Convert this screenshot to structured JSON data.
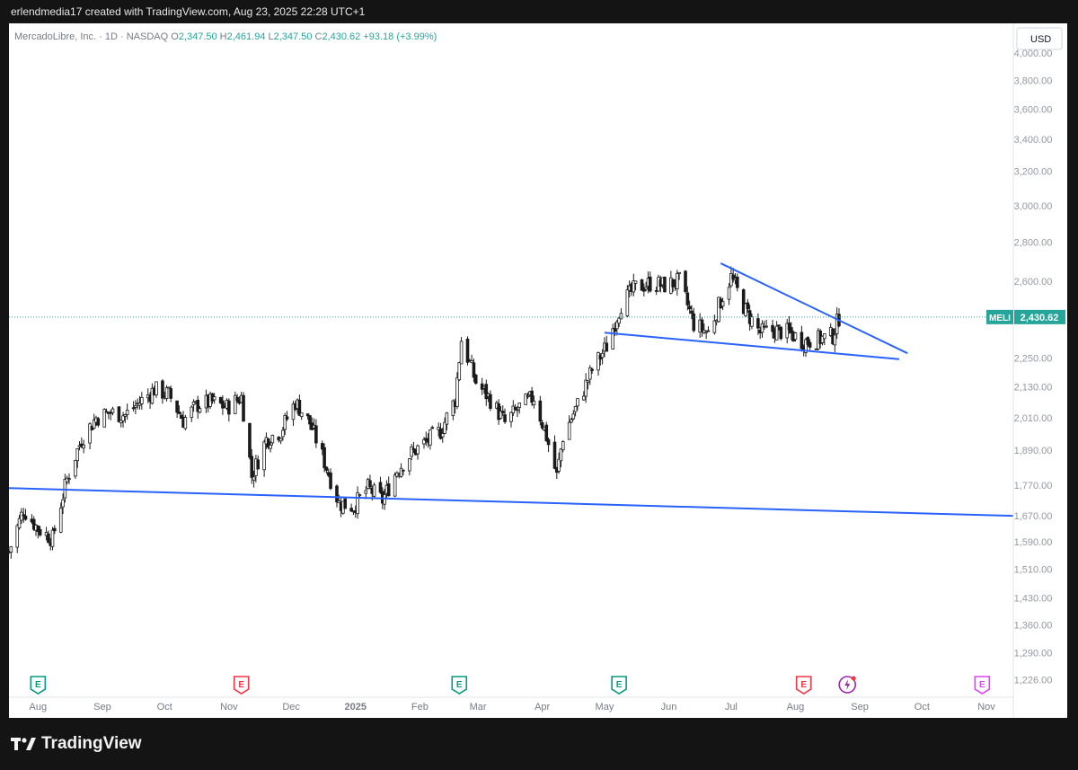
{
  "header": {
    "credit": "erlendmedia17 created with TradingView.com, Aug 23, 2025 22:28 UTC+1"
  },
  "footer": {
    "brand": "TradingView"
  },
  "colors": {
    "up": "#26a69a",
    "down": "#ef5350",
    "candle": "#1a1a1a",
    "trendline": "#2962ff",
    "earnings_past": "#089981",
    "earnings_recent": "#f23645",
    "earnings_future": "#e040fb",
    "price_label": "#26a69a"
  },
  "chart_data": {
    "type": "candlestick",
    "title": "MercadoLibre, Inc. · 1D · NASDAQ",
    "ohlc_header": {
      "o_label": "O",
      "open": "2,347.50",
      "h_label": "H",
      "high": "2,461.94",
      "l_label": "L",
      "low": "2,347.50",
      "c_label": "C",
      "close": "2,430.62",
      "change": "+93.18 (+3.99%)"
    },
    "currency": "USD",
    "symbol": "MELI",
    "last_price": 2430.62,
    "last_price_label": "2,430.62",
    "y_scale": "log",
    "ylim": [
      1190,
      4160
    ],
    "y_ticks": [
      {
        "value": 4000,
        "label": "4,000.00"
      },
      {
        "value": 3800,
        "label": "3,800.00"
      },
      {
        "value": 3600,
        "label": "3,600.00"
      },
      {
        "value": 3400,
        "label": "3,400.00"
      },
      {
        "value": 3200,
        "label": "3,200.00"
      },
      {
        "value": 3000,
        "label": "3,000.00"
      },
      {
        "value": 2800,
        "label": "2,800.00"
      },
      {
        "value": 2600,
        "label": "2,600.00"
      },
      {
        "value": 2250,
        "label": "2,250.00"
      },
      {
        "value": 2130,
        "label": "2,130.00"
      },
      {
        "value": 2010,
        "label": "2,010.00"
      },
      {
        "value": 1890,
        "label": "1,890.00"
      },
      {
        "value": 1770,
        "label": "1,770.00"
      },
      {
        "value": 1670,
        "label": "1,670.00"
      },
      {
        "value": 1590,
        "label": "1,590.00"
      },
      {
        "value": 1510,
        "label": "1,510.00"
      },
      {
        "value": 1430,
        "label": "1,430.00"
      },
      {
        "value": 1360,
        "label": "1,360.00"
      },
      {
        "value": 1290,
        "label": "1,290.00"
      },
      {
        "value": 1226,
        "label": "1,226.00"
      }
    ],
    "x_ticks": [
      {
        "date": "2024-08-01",
        "label": "Aug",
        "bold": false
      },
      {
        "date": "2024-09-01",
        "label": "Sep",
        "bold": false
      },
      {
        "date": "2024-10-01",
        "label": "Oct",
        "bold": false
      },
      {
        "date": "2024-11-01",
        "label": "Nov",
        "bold": false
      },
      {
        "date": "2024-12-01",
        "label": "Dec",
        "bold": false
      },
      {
        "date": "2025-01-01",
        "label": "2025",
        "bold": true
      },
      {
        "date": "2025-02-01",
        "label": "Feb",
        "bold": false
      },
      {
        "date": "2025-03-01",
        "label": "Mar",
        "bold": false
      },
      {
        "date": "2025-04-01",
        "label": "Apr",
        "bold": false
      },
      {
        "date": "2025-05-01",
        "label": "May",
        "bold": false
      },
      {
        "date": "2025-06-01",
        "label": "Jun",
        "bold": false
      },
      {
        "date": "2025-07-01",
        "label": "Jul",
        "bold": false
      },
      {
        "date": "2025-08-01",
        "label": "Aug",
        "bold": false
      },
      {
        "date": "2025-09-01",
        "label": "Sep",
        "bold": false
      },
      {
        "date": "2025-10-01",
        "label": "Oct",
        "bold": false
      },
      {
        "date": "2025-11-01",
        "label": "Nov",
        "bold": false
      }
    ],
    "x_range": [
      "2024-07-18",
      "2025-11-14"
    ],
    "series": [
      {
        "date": "2024-07-18",
        "close": 1560
      },
      {
        "date": "2024-07-25",
        "close": 1690
      },
      {
        "date": "2024-08-01",
        "close": 1630
      },
      {
        "date": "2024-08-08",
        "close": 1600
      },
      {
        "date": "2024-08-15",
        "close": 1790
      },
      {
        "date": "2024-08-22",
        "close": 1930
      },
      {
        "date": "2024-08-29",
        "close": 2010
      },
      {
        "date": "2024-09-05",
        "close": 2030
      },
      {
        "date": "2024-09-12",
        "close": 2020
      },
      {
        "date": "2024-09-19",
        "close": 2070
      },
      {
        "date": "2024-09-26",
        "close": 2120
      },
      {
        "date": "2024-10-03",
        "close": 2100
      },
      {
        "date": "2024-10-10",
        "close": 2000
      },
      {
        "date": "2024-10-17",
        "close": 2060
      },
      {
        "date": "2024-10-24",
        "close": 2070
      },
      {
        "date": "2024-10-31",
        "close": 2050
      },
      {
        "date": "2024-11-07",
        "close": 2090
      },
      {
        "date": "2024-11-12",
        "close": 1800
      },
      {
        "date": "2024-11-19",
        "close": 1930
      },
      {
        "date": "2024-11-26",
        "close": 1960
      },
      {
        "date": "2024-12-03",
        "close": 2070
      },
      {
        "date": "2024-12-10",
        "close": 1990
      },
      {
        "date": "2024-12-17",
        "close": 1850
      },
      {
        "date": "2024-12-24",
        "close": 1710
      },
      {
        "date": "2024-12-31",
        "close": 1700
      },
      {
        "date": "2025-01-07",
        "close": 1760
      },
      {
        "date": "2025-01-14",
        "close": 1720
      },
      {
        "date": "2025-01-21",
        "close": 1820
      },
      {
        "date": "2025-01-28",
        "close": 1880
      },
      {
        "date": "2025-02-04",
        "close": 1920
      },
      {
        "date": "2025-02-11",
        "close": 1960
      },
      {
        "date": "2025-02-18",
        "close": 2080
      },
      {
        "date": "2025-02-21",
        "close": 2330
      },
      {
        "date": "2025-02-28",
        "close": 2150
      },
      {
        "date": "2025-03-07",
        "close": 2080
      },
      {
        "date": "2025-03-14",
        "close": 1990
      },
      {
        "date": "2025-03-21",
        "close": 2050
      },
      {
        "date": "2025-03-28",
        "close": 2090
      },
      {
        "date": "2025-04-03",
        "close": 1940
      },
      {
        "date": "2025-04-08",
        "close": 1800
      },
      {
        "date": "2025-04-11",
        "close": 1940
      },
      {
        "date": "2025-04-18",
        "close": 2060
      },
      {
        "date": "2025-04-25",
        "close": 2200
      },
      {
        "date": "2025-05-02",
        "close": 2300
      },
      {
        "date": "2025-05-09",
        "close": 2490
      },
      {
        "date": "2025-05-16",
        "close": 2570
      },
      {
        "date": "2025-05-23",
        "close": 2590
      },
      {
        "date": "2025-05-30",
        "close": 2580
      },
      {
        "date": "2025-06-06",
        "close": 2600
      },
      {
        "date": "2025-06-13",
        "close": 2400
      },
      {
        "date": "2025-06-20",
        "close": 2360
      },
      {
        "date": "2025-06-27",
        "close": 2530
      },
      {
        "date": "2025-07-01",
        "close": 2620
      },
      {
        "date": "2025-07-08",
        "close": 2460
      },
      {
        "date": "2025-07-15",
        "close": 2360
      },
      {
        "date": "2025-07-22",
        "close": 2370
      },
      {
        "date": "2025-07-29",
        "close": 2360
      },
      {
        "date": "2025-08-05",
        "close": 2320
      },
      {
        "date": "2025-08-12",
        "close": 2330
      },
      {
        "date": "2025-08-19",
        "close": 2347.5
      },
      {
        "date": "2025-08-22",
        "close": 2430.62
      }
    ],
    "trendlines": [
      {
        "name": "long-support",
        "from": {
          "date": "2024-07-18",
          "price": 1760
        },
        "to": {
          "date": "2025-11-14",
          "price": 1670
        }
      },
      {
        "name": "wedge-upper",
        "from": {
          "date": "2025-06-26",
          "price": 2690
        },
        "to": {
          "date": "2025-09-24",
          "price": 2270
        }
      },
      {
        "name": "wedge-lower",
        "from": {
          "date": "2025-05-01",
          "price": 2360
        },
        "to": {
          "date": "2025-09-20",
          "price": 2245
        }
      }
    ],
    "events": [
      {
        "type": "earnings",
        "label": "E",
        "date": "2024-08-01",
        "status": "past"
      },
      {
        "type": "earnings",
        "label": "E",
        "date": "2024-11-07",
        "status": "recent"
      },
      {
        "type": "earnings",
        "label": "E",
        "date": "2025-02-20",
        "status": "past"
      },
      {
        "type": "earnings",
        "label": "E",
        "date": "2025-05-08",
        "status": "past"
      },
      {
        "type": "earnings",
        "label": "E",
        "date": "2025-08-05",
        "status": "recent"
      },
      {
        "type": "dividend-flash",
        "label": "",
        "date": "2025-08-26",
        "status": "flash"
      },
      {
        "type": "earnings",
        "label": "E",
        "date": "2025-10-30",
        "status": "future"
      }
    ],
    "grid": false,
    "legend": "top-left"
  }
}
